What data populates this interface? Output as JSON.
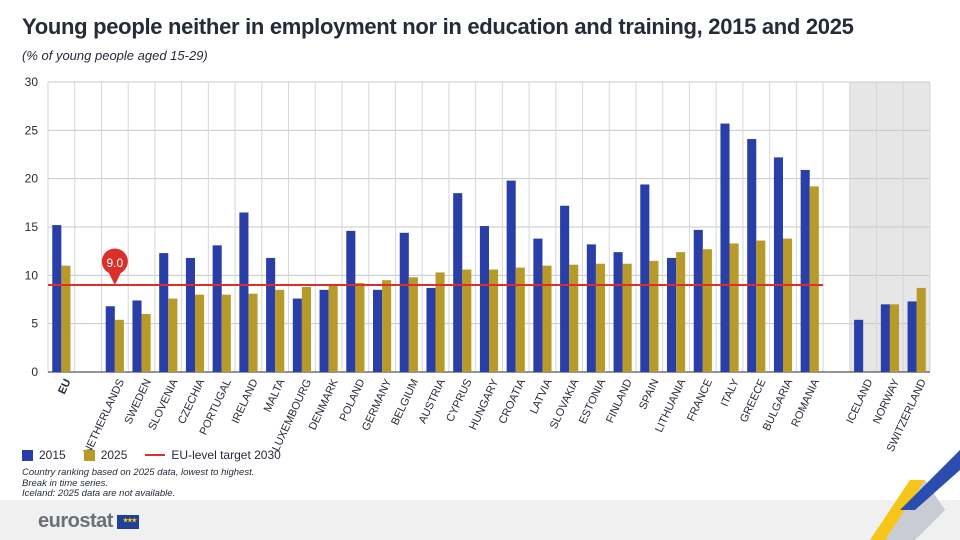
{
  "header": {
    "title": "Young people neither in employment nor in education and training, 2015 and 2025",
    "subtitle": "(% of young people aged 15-29)"
  },
  "legend": {
    "item_2015": "2015",
    "item_2025": "2025",
    "item_target": "EU-level target 2030"
  },
  "notes": [
    "Country ranking based on 2025 data, lowest to highest.",
    "Break in time series.",
    "Iceland: 2025 data are not available."
  ],
  "brand": {
    "name": "eurostat"
  },
  "chart_data": {
    "type": "bar",
    "title": "Young people neither in employment nor in education and training, 2015 and 2025",
    "subtitle": "(% of young people aged 15-29)",
    "ylim": [
      0,
      30
    ],
    "yticks": [
      0,
      5,
      10,
      15,
      20,
      25,
      30
    ],
    "grid": true,
    "legend_position": "bottom-left",
    "categories": [
      "EU",
      "NETHERLANDS",
      "SWEDEN",
      "SLOVENIA",
      "CZECHIA",
      "PORTUGAL",
      "IRELAND",
      "MALTA",
      "LUXEMBOURG",
      "DENMARK",
      "POLAND",
      "GERMANY",
      "BELGIUM",
      "AUSTRIA",
      "CYPRUS",
      "HUNGARY",
      "CROATIA",
      "LATVIA",
      "SLOVAKIA",
      "ESTONIA",
      "FINLAND",
      "SPAIN",
      "LITHUANIA",
      "FRANCE",
      "ITALY",
      "GREECE",
      "BULGARIA",
      "ROMANIA",
      "ICELAND",
      "NORWAY",
      "SWITZERLAND"
    ],
    "series": [
      {
        "name": "2015",
        "color": "#2a3ea8",
        "values": [
          15.2,
          6.8,
          7.4,
          12.3,
          11.8,
          13.1,
          16.5,
          11.8,
          7.6,
          8.5,
          14.6,
          8.5,
          14.4,
          8.7,
          18.5,
          15.1,
          19.8,
          13.8,
          17.2,
          13.2,
          12.4,
          19.4,
          11.8,
          14.7,
          25.7,
          24.1,
          22.2,
          20.9,
          5.4,
          7.0,
          7.3
        ]
      },
      {
        "name": "2025",
        "color": "#b89a2a",
        "values": [
          11.0,
          5.4,
          6.0,
          7.6,
          8.0,
          8.0,
          8.1,
          8.5,
          8.8,
          9.0,
          9.2,
          9.5,
          9.8,
          10.3,
          10.6,
          10.6,
          10.8,
          11.0,
          11.1,
          11.2,
          11.2,
          11.5,
          12.4,
          12.7,
          13.3,
          13.6,
          13.8,
          19.2,
          null,
          7.0,
          8.7
        ]
      }
    ],
    "target": {
      "name": "EU-level target 2030",
      "value": 9.0,
      "label": "9.0",
      "color": "#d9302b"
    }
  }
}
